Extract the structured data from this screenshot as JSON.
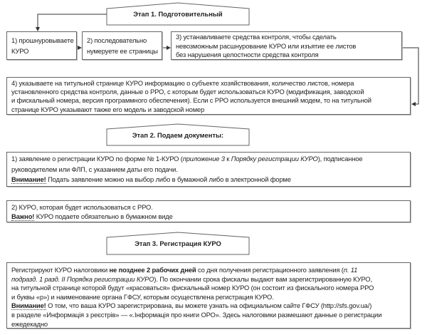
{
  "stage1": {
    "title": "Этап 1. Подготовительный",
    "steps": [
      [
        "1) прошнуровываете",
        "КУРО"
      ],
      [
        "2) последовательно",
        "нумеруете ее страницы"
      ],
      [
        "3) устанавливаете средства контроля, чтобы сделать",
        "невозможным расшнурование КУРО или изъятие ее листов",
        "без нарушения целостности средства контроля"
      ],
      [
        "4) указываете на титульной странице КУРО информацию о субъекте хозяйствования, количество листов, номера",
        "установленного средства контроля, данные о РРО, с которым будет использоваться КУРО (модификация, заводской",
        "и фискальный номера, версия программного обеспечения). Если с РРО используется внешний модем, то на титульной",
        "странице КУРО указывают также его модель и заводской номер"
      ]
    ]
  },
  "stage2": {
    "title": "Этап 2. Подаем документы:",
    "item1": {
      "pre": "1) заявление о регистрации КУРО по форме № 1-КУРО (",
      "italic1": "приложение 3",
      "mid": " к ",
      "italic2": "Порядку регистрации КУРО",
      "post": "), подписанное",
      "line2": "руководителем или ФЛП, с указанием даты его подачи.",
      "warn": "Внимание!",
      "warn_text": " Подать заявление можно на выбор либо в бумажной либо в электронной форме"
    },
    "item2": {
      "line1": "2) КУРО, которая будет использоваться с РРО.",
      "warn": "Важно!",
      "warn_text": " КУРО подаете обязательно в бумажном виде"
    }
  },
  "stage3": {
    "title": "Этап 3. Регистрация КУРО",
    "l1_pre": "Регистрируют КУРО налоговики ",
    "l1_bold": "не позднее 2 рабочих дней",
    "l1_post": " со дня получения регистрационного заявления (",
    "l1_italic": "п. 11",
    "l2_italic": "подразд. 1 разд. II Порядка регистрации КУРО",
    "l2_post": "). По окончании срока фискалы выдают вам зарегистрированную КУРО,",
    "l3": "на титульной странице которой будут «красоваться» фискальный номер КУРО (он состоит из фискального номера РРО",
    "l4": "и буквы «р») и наименование органа ГФСУ, которым осуществлена регистрация КУРО.",
    "warn": "Внимание!",
    "l5_post": " О том, что ваша КУРО зарегистрирована, вы можете узнать на официальном сайте ГФСУ (http://sfs.gov.ua/)",
    "l6": "в разделе «Информація з реєстрів» — «.Інформація про книги ОРО». Здесь налоговики размешают данные о регистрации",
    "l7": "ежедекадно"
  }
}
